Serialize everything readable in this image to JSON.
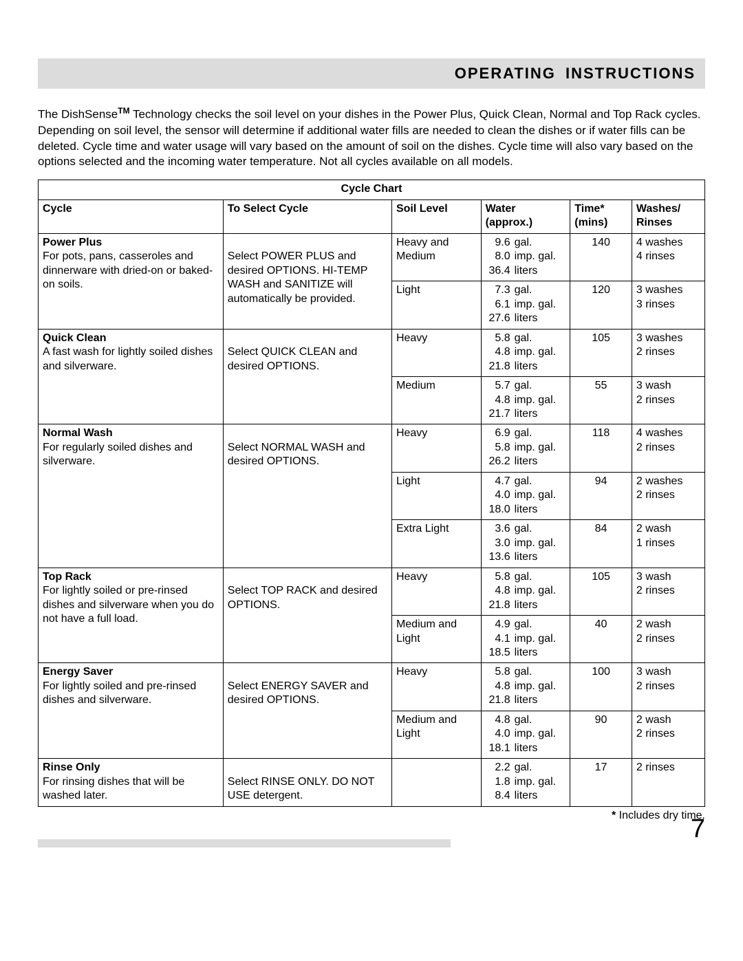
{
  "header": {
    "title": "OPERATING  INSTRUCTIONS"
  },
  "intro": {
    "prefix": "The DishSense",
    "tm": "TM",
    "rest": " Technology checks the soil level on your dishes in the Power Plus, Quick Clean, Normal and Top Rack cycles. Depending on soil level, the sensor will determine if additional water fills are needed to clean the dishes or if water fills can be deleted. Cycle time and water usage will vary based on the amount of soil on the dishes. Cycle time will also vary based on the options selected and the incoming water temperature.    Not all cycles available on all models."
  },
  "table": {
    "title": "Cycle Chart",
    "columns": {
      "cycle": "Cycle",
      "select": "To Select Cycle",
      "soil": "Soil  Level",
      "water": "Water (approx.)",
      "time": "Time* (mins)",
      "wr": "Washes/ Rinses"
    }
  },
  "cycles": [
    {
      "name": "Power Plus",
      "desc": "For pots, pans, casseroles and dinnerware with dried-on or baked-on soils.",
      "select": "Select POWER PLUS and desired OPTIONS. HI-TEMP WASH and SANITIZE will automatically be provided.",
      "rows": [
        {
          "soil": "Heavy and Medium",
          "gal": "9.6",
          "imp": "8.0",
          "lit": "36.4",
          "time": "140",
          "w": "4 washes",
          "r": "4 rinses"
        },
        {
          "soil": "Light",
          "gal": "7.3",
          "imp": "6.1",
          "lit": "27.6",
          "time": "120",
          "w": "3 washes",
          "r": "3 rinses"
        }
      ]
    },
    {
      "name": "Quick Clean",
      "desc": "A fast wash for lightly soiled dishes and silverware.",
      "select": "Select QUICK CLEAN and desired OPTIONS.",
      "rows": [
        {
          "soil": "Heavy",
          "gal": "5.8",
          "imp": "4.8",
          "lit": "21.8",
          "time": "105",
          "w": "3 washes",
          "r": "2 rinses"
        },
        {
          "soil": "Medium",
          "gal": "5.7",
          "imp": "4.8",
          "lit": "21.7",
          "time": "55",
          "w": "3 wash",
          "r": "2 rinses"
        }
      ]
    },
    {
      "name": "Normal Wash",
      "desc": "For regularly soiled dishes and silverware.",
      "select": "Select NORMAL WASH and desired OPTIONS.",
      "rows": [
        {
          "soil": "Heavy",
          "gal": "6.9",
          "imp": "5.8",
          "lit": "26.2",
          "time": "118",
          "w": "4 washes",
          "r": "2 rinses"
        },
        {
          "soil": "Light",
          "gal": "4.7",
          "imp": "4.0",
          "lit": "18.0",
          "time": "94",
          "w": "2 washes",
          "r": "2 rinses"
        },
        {
          "soil": "Extra Light",
          "gal": "3.6",
          "imp": "3.0",
          "lit": "13.6",
          "time": "84",
          "w": "2 wash",
          "r": "1 rinses"
        }
      ]
    },
    {
      "name": "Top Rack",
      "desc": "For lightly soiled or pre-rinsed dishes and silverware when you do not have a full load.",
      "select": "Select TOP RACK and desired OPTIONS.",
      "rows": [
        {
          "soil": "Heavy",
          "gal": "5.8",
          "imp": "4.8",
          "lit": "21.8",
          "time": "105",
          "w": "3 wash",
          "r": "2 rinses"
        },
        {
          "soil": "Medium and Light",
          "gal": "4.9",
          "imp": "4.1",
          "lit": "18.5",
          "time": "40",
          "w": "2 wash",
          "r": "2 rinses"
        }
      ]
    },
    {
      "name": "Energy Saver",
      "desc": "For lightly soiled and pre-rinsed dishes and silverware.",
      "select": "Select ENERGY SAVER and desired OPTIONS.",
      "rows": [
        {
          "soil": "Heavy",
          "gal": "5.8",
          "imp": "4.8",
          "lit": "21.8",
          "time": "100",
          "w": "3 wash",
          "r": "2 rinses"
        },
        {
          "soil": "Medium and Light",
          "gal": "4.8",
          "imp": "4.0",
          "lit": "18.1",
          "time": "90",
          "w": "2 wash",
          "r": "2 rinses"
        }
      ]
    },
    {
      "name": "Rinse Only",
      "desc": "For rinsing dishes that will be washed later.",
      "select": "Select RINSE ONLY. DO NOT USE detergent.",
      "rows": [
        {
          "soil": "",
          "gal": "2.2",
          "imp": "1.8",
          "lit": "8.4",
          "time": "17",
          "w": "2 rinses",
          "r": ""
        }
      ]
    }
  ],
  "units": {
    "gal": "gal.",
    "imp": "imp. gal.",
    "lit": "liters"
  },
  "footnote": {
    "star": "*",
    "text": " Includes dry time."
  },
  "page_number": "7",
  "colors": {
    "header_bg": "#dcdcdc",
    "text": "#000000",
    "border": "#000000",
    "page_bg": "#ffffff"
  }
}
